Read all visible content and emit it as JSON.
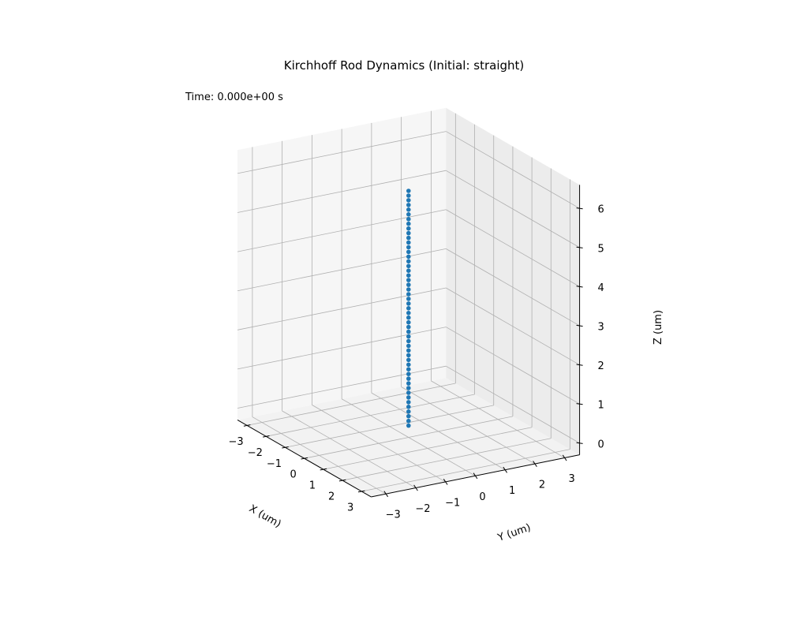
{
  "chart_data": {
    "type": "scatter",
    "projection": "3d",
    "title": "Kirchhoff Rod Dynamics (Initial: straight)",
    "annotation": "Time: 0.000e+00 s",
    "xlabel": "X (um)",
    "ylabel": "Y (um)",
    "zlabel": "Z (um)",
    "xlim": [
      -3.5,
      3.5
    ],
    "ylim": [
      -3.5,
      3.5
    ],
    "zlim": [
      -0.3,
      6.6
    ],
    "xticks": [
      -3,
      -2,
      -1,
      0,
      1,
      2,
      3
    ],
    "xtick_labels": [
      "−3",
      "−2",
      "−1",
      "0",
      "1",
      "2",
      "3"
    ],
    "yticks": [
      -3,
      -2,
      -1,
      0,
      1,
      2,
      3
    ],
    "ytick_labels": [
      "−3",
      "−2",
      "−1",
      "0",
      "1",
      "2",
      "3"
    ],
    "zticks": [
      0,
      1,
      2,
      3,
      4,
      5,
      6
    ],
    "ztick_labels": [
      "0",
      "1",
      "2",
      "3",
      "4",
      "5",
      "6"
    ],
    "grid": true,
    "series": [
      {
        "color": "#1f77b4",
        "x": [
          0,
          0,
          0,
          0,
          0,
          0,
          0,
          0,
          0,
          0,
          0,
          0,
          0,
          0,
          0,
          0,
          0,
          0,
          0,
          0,
          0,
          0,
          0,
          0,
          0,
          0,
          0,
          0,
          0,
          0,
          0,
          0,
          0,
          0,
          0,
          0,
          0,
          0,
          0,
          0,
          0,
          0,
          0,
          0,
          0,
          0,
          0,
          0,
          0,
          0,
          0
        ],
        "y": [
          0,
          0,
          0,
          0,
          0,
          0,
          0,
          0,
          0,
          0,
          0,
          0,
          0,
          0,
          0,
          0,
          0,
          0,
          0,
          0,
          0,
          0,
          0,
          0,
          0,
          0,
          0,
          0,
          0,
          0,
          0,
          0,
          0,
          0,
          0,
          0,
          0,
          0,
          0,
          0,
          0,
          0,
          0,
          0,
          0,
          0,
          0,
          0,
          0,
          0,
          0
        ],
        "z": [
          0,
          0.12,
          0.24,
          0.36,
          0.48,
          0.6,
          0.72,
          0.84,
          0.96,
          1.08,
          1.2,
          1.32,
          1.44,
          1.56,
          1.68,
          1.8,
          1.92,
          2.04,
          2.16,
          2.28,
          2.4,
          2.52,
          2.64,
          2.76,
          2.88,
          3.0,
          3.12,
          3.24,
          3.36,
          3.48,
          3.6,
          3.72,
          3.84,
          3.96,
          4.08,
          4.2,
          4.32,
          4.44,
          4.56,
          4.68,
          4.8,
          4.92,
          5.04,
          5.16,
          5.28,
          5.4,
          5.52,
          5.64,
          5.76,
          5.88,
          6.0
        ]
      }
    ]
  }
}
